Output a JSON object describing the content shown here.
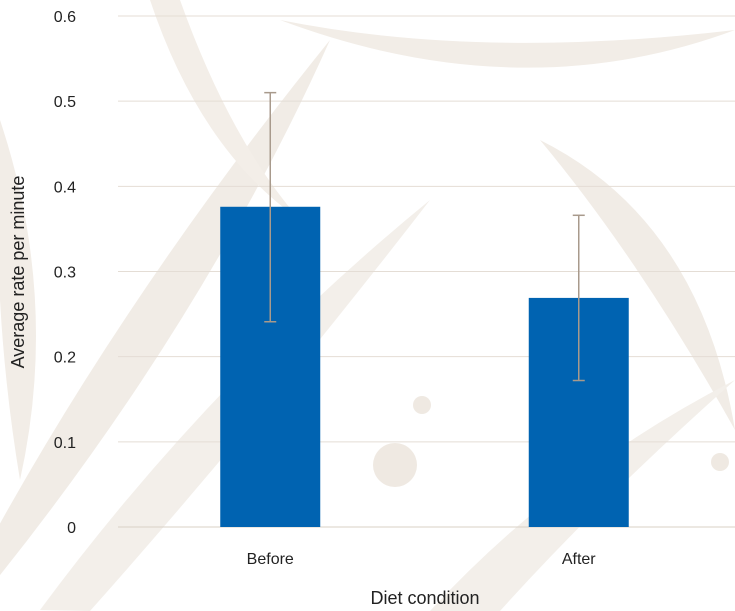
{
  "chart_data": {
    "type": "bar",
    "title": "",
    "xlabel": "Diet condition",
    "ylabel": "Average rate per minute",
    "categories": [
      "Before",
      "After"
    ],
    "values": [
      0.376,
      0.269
    ],
    "error_bars": {
      "upper": [
        0.51,
        0.366
      ],
      "lower": [
        0.241,
        0.172
      ]
    },
    "ylim": [
      0,
      0.6
    ],
    "yticks": [
      "0",
      "0.1",
      "0.2",
      "0.3",
      "0.4",
      "0.5",
      "0.6"
    ],
    "grid": "horizontal",
    "legend": "none",
    "colors": {
      "bar": "#0063B1",
      "error_bar": "#A89A8C",
      "grid": "#E4DDD5",
      "background_leaf": "#EAE3DA"
    }
  }
}
